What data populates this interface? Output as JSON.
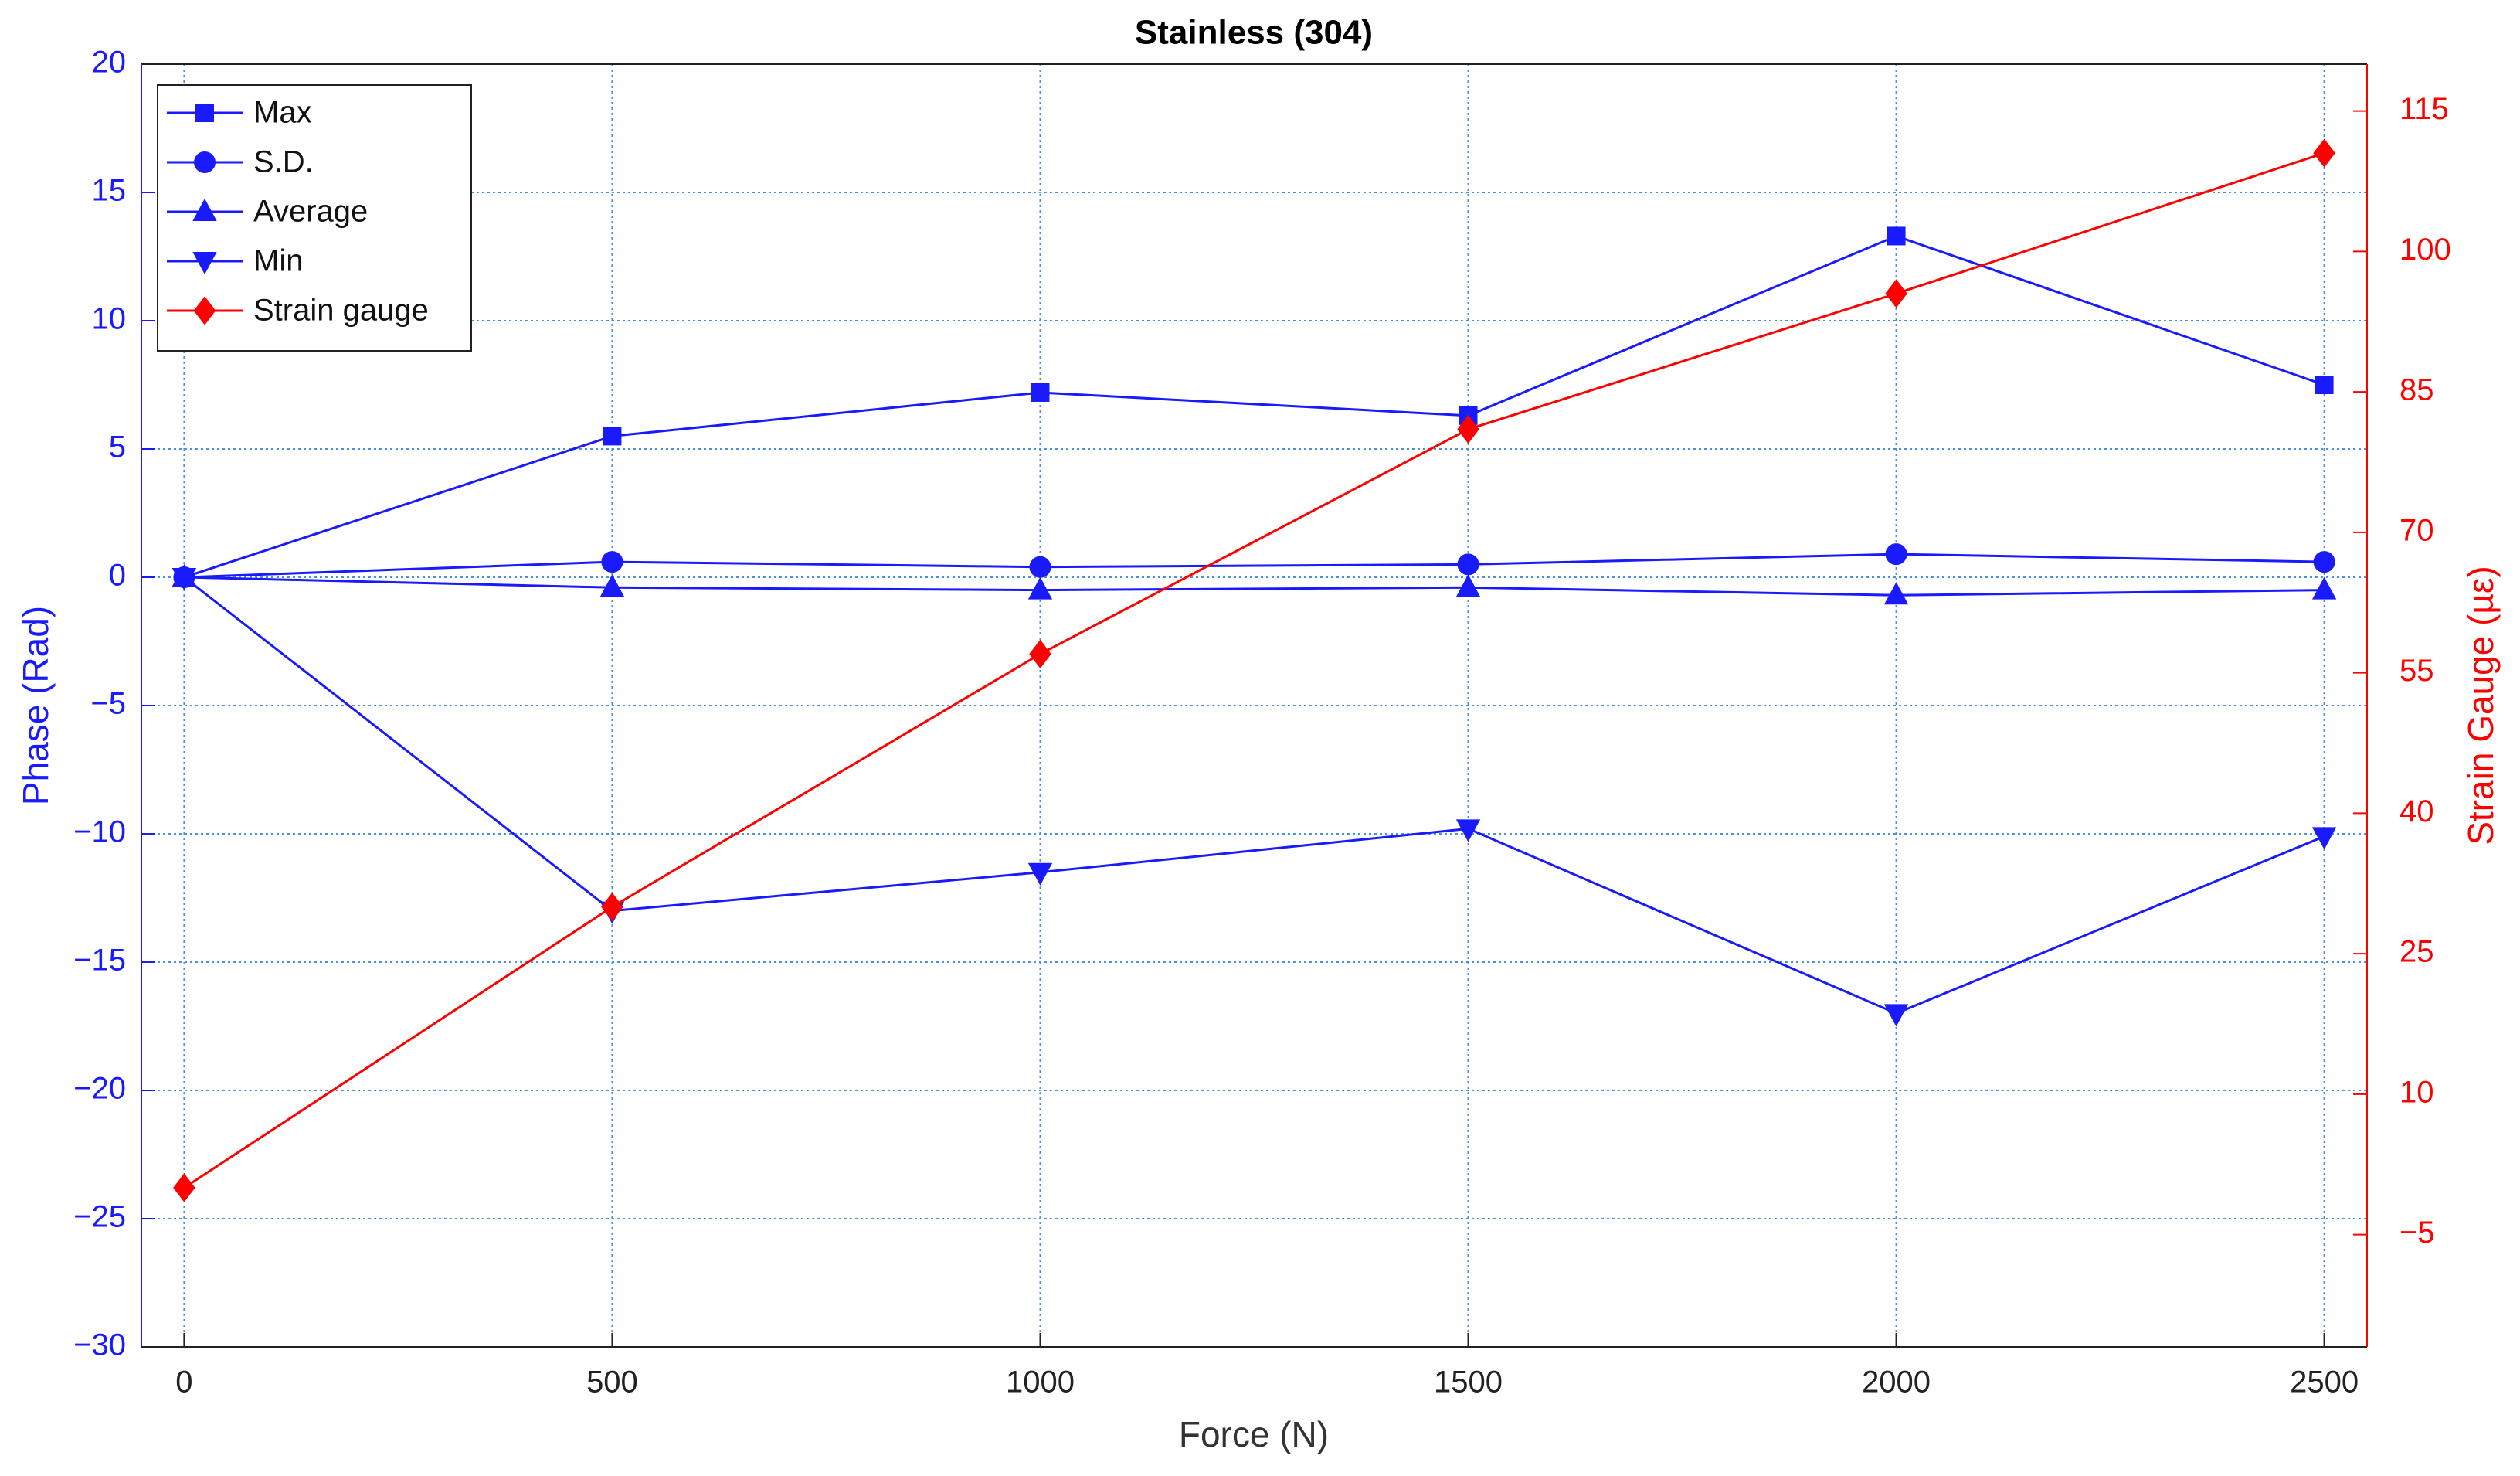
{
  "chart_data": {
    "type": "line",
    "title": "Stainless (304)",
    "x_label": "Force (N)",
    "y_label": "Phase (Rad)",
    "y2_label": "Strain Gauge (µε)",
    "x": [
      0,
      500,
      1000,
      1500,
      2000,
      2500
    ],
    "xlim": [
      -50,
      2550
    ],
    "xticks": [
      0,
      500,
      1000,
      1500,
      2000,
      2500
    ],
    "ylim": [
      -30,
      20
    ],
    "yticks": [
      {
        "value": -30,
        "label": "−30"
      },
      {
        "value": -25,
        "label": "−25"
      },
      {
        "value": -20,
        "label": "−20"
      },
      {
        "value": -15,
        "label": "−15"
      },
      {
        "value": -10,
        "label": "−10"
      },
      {
        "value": -5,
        "label": "−5"
      },
      0,
      5,
      10,
      15,
      20
    ],
    "y2lim": [
      -17,
      120
    ],
    "y2ticks": [
      {
        "value": -5,
        "label": "−5"
      },
      10,
      25,
      40,
      55,
      70,
      85,
      100,
      115
    ],
    "grid": true,
    "legend": "upper left",
    "y_color": "#1a1aff",
    "y2_color": "#ff0000",
    "series": [
      {
        "name": "Max",
        "color": "#1a1aff",
        "marker": "square",
        "values": [
          0,
          5.5,
          7.2,
          6.3,
          13.3,
          7.5
        ]
      },
      {
        "name": "S.D.",
        "color": "#1a1aff",
        "marker": "circle",
        "values": [
          0,
          0.6,
          0.4,
          0.5,
          0.9,
          0.6
        ]
      },
      {
        "name": "Average",
        "color": "#1a1aff",
        "marker": "triangle-up",
        "values": [
          0,
          -0.4,
          -0.5,
          -0.4,
          -0.7,
          -0.5
        ]
      },
      {
        "name": "Min",
        "color": "#1a1aff",
        "marker": "triangle-down",
        "values": [
          0,
          -13,
          -11.5,
          -9.8,
          -17,
          -10.1
        ]
      },
      {
        "name": "Strain gauge",
        "color": "#ff0000",
        "marker": "diamond",
        "axis": "y2",
        "values": [
          0,
          30,
          57,
          81,
          95.5,
          110.5
        ]
      }
    ]
  }
}
